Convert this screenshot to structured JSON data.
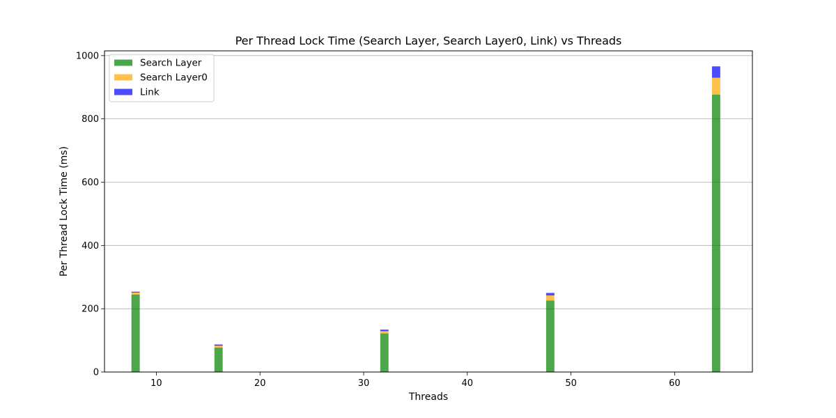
{
  "chart_data": {
    "type": "bar",
    "stacked": true,
    "title": "Per Thread Lock Time (Search Layer, Search Layer0, Link) vs Threads",
    "xlabel": "Threads",
    "ylabel": "Per Thread Lock Time (ms)",
    "x": [
      8,
      16,
      32,
      48,
      64
    ],
    "xlim": [
      5,
      67.5
    ],
    "ylim": [
      0,
      1015
    ],
    "xticks": [
      10,
      20,
      30,
      40,
      50,
      60
    ],
    "yticks": [
      0,
      200,
      400,
      600,
      800,
      1000
    ],
    "bar_width": 0.8,
    "grid": "y",
    "legend_position": "top-left",
    "series": [
      {
        "name": "Search Layer",
        "color": "#008000",
        "opacity": 0.7,
        "values": [
          245,
          77,
          122,
          226,
          877
        ]
      },
      {
        "name": "Search Layer0",
        "color": "#FFA500",
        "opacity": 0.7,
        "values": [
          6,
          6,
          7,
          16,
          53
        ]
      },
      {
        "name": "Link",
        "color": "#0000FF",
        "opacity": 0.7,
        "values": [
          3,
          4,
          5,
          8,
          36
        ]
      }
    ]
  }
}
